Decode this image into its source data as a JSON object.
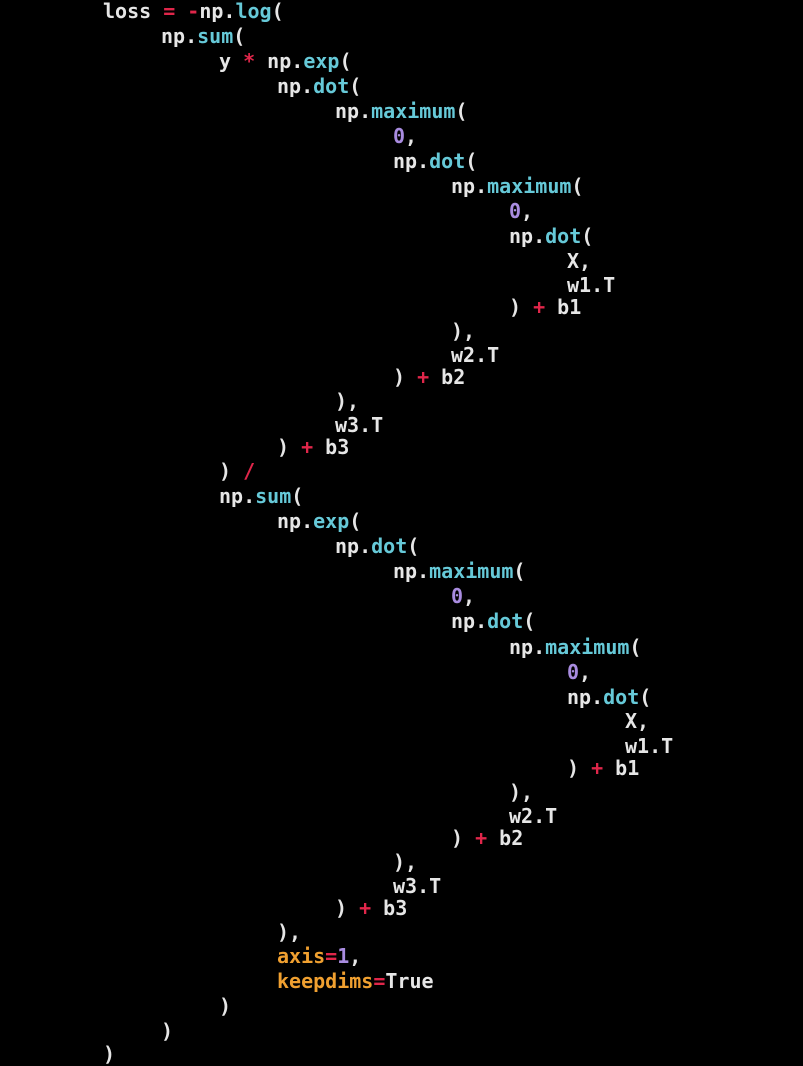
{
  "editor": {
    "background": "#000000",
    "token_colors": {
      "default": "#e6e6e6",
      "operator": "#e0264a",
      "function": "#66c9d8",
      "number": "#a98ce0",
      "keyword_arg": "#f0a030"
    },
    "lines": [
      [
        {
          "t": "loss ",
          "c": "default"
        },
        {
          "t": "= -",
          "c": "op"
        },
        {
          "t": "np.",
          "c": "default"
        },
        {
          "t": "log",
          "c": "func"
        },
        {
          "t": "(",
          "c": "default"
        }
      ],
      [
        {
          "t": "np.",
          "c": "default"
        },
        {
          "t": "sum",
          "c": "func"
        },
        {
          "t": "(",
          "c": "default"
        }
      ],
      [
        {
          "t": "y ",
          "c": "default"
        },
        {
          "t": "*",
          "c": "op"
        },
        {
          "t": " np.",
          "c": "default"
        },
        {
          "t": "exp",
          "c": "func"
        },
        {
          "t": "(",
          "c": "default"
        }
      ],
      [
        {
          "t": "np.",
          "c": "default"
        },
        {
          "t": "dot",
          "c": "func"
        },
        {
          "t": "(",
          "c": "default"
        }
      ],
      [
        {
          "t": "np.",
          "c": "default"
        },
        {
          "t": "maximum",
          "c": "func"
        },
        {
          "t": "(",
          "c": "default"
        }
      ],
      [
        {
          "t": "0",
          "c": "num"
        },
        {
          "t": ",",
          "c": "default"
        }
      ],
      [
        {
          "t": "np.",
          "c": "default"
        },
        {
          "t": "dot",
          "c": "func"
        },
        {
          "t": "(",
          "c": "default"
        }
      ],
      [
        {
          "t": "np.",
          "c": "default"
        },
        {
          "t": "maximum",
          "c": "func"
        },
        {
          "t": "(",
          "c": "default"
        }
      ],
      [
        {
          "t": "0",
          "c": "num"
        },
        {
          "t": ",",
          "c": "default"
        }
      ],
      [
        {
          "t": "np.",
          "c": "default"
        },
        {
          "t": "dot",
          "c": "func"
        },
        {
          "t": "(",
          "c": "default"
        }
      ],
      [
        {
          "t": "X,",
          "c": "default"
        }
      ],
      [
        {
          "t": "w1.T",
          "c": "default"
        }
      ],
      [
        {
          "t": ") ",
          "c": "default"
        },
        {
          "t": "+",
          "c": "op"
        },
        {
          "t": " b1",
          "c": "default"
        }
      ],
      [
        {
          "t": "),",
          "c": "default"
        }
      ],
      [
        {
          "t": "w2.T",
          "c": "default"
        }
      ],
      [
        {
          "t": ") ",
          "c": "default"
        },
        {
          "t": "+",
          "c": "op"
        },
        {
          "t": " b2",
          "c": "default"
        }
      ],
      [
        {
          "t": "),",
          "c": "default"
        }
      ],
      [
        {
          "t": "w3.T",
          "c": "default"
        }
      ],
      [
        {
          "t": ") ",
          "c": "default"
        },
        {
          "t": "+",
          "c": "op"
        },
        {
          "t": " b3",
          "c": "default"
        }
      ],
      [
        {
          "t": ") ",
          "c": "default"
        },
        {
          "t": "/",
          "c": "op"
        }
      ],
      [
        {
          "t": "np.",
          "c": "default"
        },
        {
          "t": "sum",
          "c": "func"
        },
        {
          "t": "(",
          "c": "default"
        }
      ],
      [
        {
          "t": "np.",
          "c": "default"
        },
        {
          "t": "exp",
          "c": "func"
        },
        {
          "t": "(",
          "c": "default"
        }
      ],
      [
        {
          "t": "np.",
          "c": "default"
        },
        {
          "t": "dot",
          "c": "func"
        },
        {
          "t": "(",
          "c": "default"
        }
      ],
      [
        {
          "t": "np.",
          "c": "default"
        },
        {
          "t": "maximum",
          "c": "func"
        },
        {
          "t": "(",
          "c": "default"
        }
      ],
      [
        {
          "t": "0",
          "c": "num"
        },
        {
          "t": ",",
          "c": "default"
        }
      ],
      [
        {
          "t": "np.",
          "c": "default"
        },
        {
          "t": "dot",
          "c": "func"
        },
        {
          "t": "(",
          "c": "default"
        }
      ],
      [
        {
          "t": "np.",
          "c": "default"
        },
        {
          "t": "maximum",
          "c": "func"
        },
        {
          "t": "(",
          "c": "default"
        }
      ],
      [
        {
          "t": "0",
          "c": "num"
        },
        {
          "t": ",",
          "c": "default"
        }
      ],
      [
        {
          "t": "np.",
          "c": "default"
        },
        {
          "t": "dot",
          "c": "func"
        },
        {
          "t": "(",
          "c": "default"
        }
      ],
      [
        {
          "t": "X,",
          "c": "default"
        }
      ],
      [
        {
          "t": "w1.T",
          "c": "default"
        }
      ],
      [
        {
          "t": ") ",
          "c": "default"
        },
        {
          "t": "+",
          "c": "op"
        },
        {
          "t": " b1",
          "c": "default"
        }
      ],
      [
        {
          "t": "),",
          "c": "default"
        }
      ],
      [
        {
          "t": "w2.T",
          "c": "default"
        }
      ],
      [
        {
          "t": ") ",
          "c": "default"
        },
        {
          "t": "+",
          "c": "op"
        },
        {
          "t": " b2",
          "c": "default"
        }
      ],
      [
        {
          "t": "),",
          "c": "default"
        }
      ],
      [
        {
          "t": "w3.T",
          "c": "default"
        }
      ],
      [
        {
          "t": ") ",
          "c": "default"
        },
        {
          "t": "+",
          "c": "op"
        },
        {
          "t": " b3",
          "c": "default"
        }
      ],
      [
        {
          "t": "),",
          "c": "default"
        }
      ],
      [
        {
          "t": "axis",
          "c": "kw"
        },
        {
          "t": "=",
          "c": "op"
        },
        {
          "t": "1",
          "c": "num"
        },
        {
          "t": ",",
          "c": "default"
        }
      ],
      [
        {
          "t": "keepdims",
          "c": "kw"
        },
        {
          "t": "=",
          "c": "op"
        },
        {
          "t": "True",
          "c": "default"
        }
      ],
      [
        {
          "t": ")",
          "c": "default"
        }
      ],
      [
        {
          "t": ")",
          "c": "default"
        }
      ],
      [
        {
          "t": ")",
          "c": "default"
        }
      ]
    ]
  }
}
